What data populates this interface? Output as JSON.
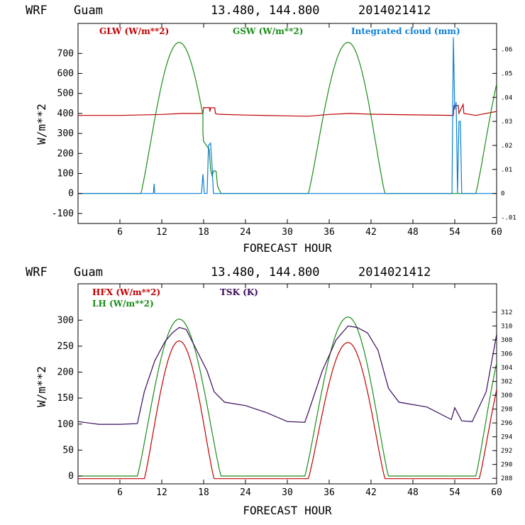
{
  "colors": {
    "red": "#c00000",
    "green": "#1a8c1a",
    "blue": "#0a7ed6",
    "purple": "#3a0a5a",
    "black": "#000000"
  },
  "chart_data": [
    {
      "type": "line",
      "header": {
        "model": "WRF",
        "location": "Guam",
        "coords": "13.480, 144.800",
        "run": "2014021412"
      },
      "xlabel": "FORECAST HOUR",
      "ylabel": "W/m**2",
      "xlim": [
        0,
        60
      ],
      "ylim": [
        -150,
        850
      ],
      "xticks": [
        "6",
        "12",
        "18",
        "24",
        "30",
        "36",
        "42",
        "48",
        "54",
        "60"
      ],
      "yticks": [
        "-100",
        "0",
        "100",
        "200",
        "300",
        "400",
        "500",
        "600",
        "700"
      ],
      "right_axis": {
        "lim": [
          -0.0125,
          0.0708
        ],
        "ticks": [
          ".06",
          ".05",
          ".04",
          ".03",
          ".02",
          ".01",
          "0",
          "-.01"
        ]
      },
      "series": [
        {
          "name": "GLW (W/m**2)",
          "color": "red",
          "axis": "left",
          "x": [
            0,
            6,
            12,
            15,
            17.9,
            18,
            18.2,
            18.8,
            18.9,
            19,
            19.6,
            19.7,
            20,
            24,
            30,
            33,
            36,
            39,
            42,
            48,
            53.8,
            53.9,
            54.5,
            54.6,
            55.2,
            55.3,
            57,
            60
          ],
          "y": [
            390,
            390,
            395,
            400,
            400,
            430,
            428,
            430,
            410,
            428,
            428,
            400,
            396,
            392,
            388,
            386,
            395,
            400,
            396,
            393,
            390,
            440,
            440,
            400,
            445,
            400,
            390,
            410
          ]
        },
        {
          "name": "GSW (W/m**2)",
          "color": "green",
          "axis": "left",
          "diurnal": [
            {
              "start": 9,
              "end": 20,
              "peak": 14.5,
              "amp": 755
            },
            {
              "start": 33,
              "end": 44,
              "peak": 38.7,
              "amp": 755
            },
            {
              "start": 57,
              "end": 68,
              "peak": 62.5,
              "amp": 755
            }
          ],
          "disturbance": {
            "x": [
              17.9,
              18,
              18.2,
              18.8,
              19,
              19.2,
              19.5,
              19.8,
              20,
              20.5
            ],
            "y": [
              305,
              260,
              250,
              220,
              120,
              90,
              115,
              110,
              35,
              0
            ]
          }
        },
        {
          "name": "Integrated cloud (mm)",
          "color": "blue",
          "axis": "right",
          "x": [
            0,
            10.8,
            10.9,
            11,
            17.7,
            17.9,
            18.1,
            18.5,
            18.7,
            19,
            19.2,
            19.4,
            53.6,
            53.8,
            54,
            54.2,
            54.4,
            54.6,
            54.8,
            55,
            55.2,
            60
          ],
          "y": [
            0,
            0,
            0.004,
            0,
            0,
            0.008,
            0,
            0,
            0.02,
            0.021,
            0.012,
            0,
            0,
            0.065,
            0.035,
            0.038,
            0,
            0.03,
            0.03,
            0,
            0,
            0
          ]
        }
      ]
    },
    {
      "type": "line",
      "header": {
        "model": "WRF",
        "location": "Guam",
        "coords": "13.480, 144.800",
        "run": "2014021412"
      },
      "xlabel": "FORECAST HOUR",
      "ylabel": "W/m**2",
      "xlim": [
        0,
        60
      ],
      "ylim": [
        -15,
        370
      ],
      "xticks": [
        "6",
        "12",
        "18",
        "24",
        "30",
        "36",
        "42",
        "48",
        "54",
        "60"
      ],
      "yticks": [
        "0",
        "50",
        "100",
        "150",
        "200",
        "250",
        "300"
      ],
      "right_axis": {
        "lim": [
          287.2,
          316.1
        ],
        "ticks": [
          "312",
          "310",
          "308",
          "306",
          "304",
          "302",
          "300",
          "298",
          "296",
          "294",
          "292",
          "290",
          "288"
        ]
      },
      "series": [
        {
          "name": "HFX (W/m**2)",
          "color": "red",
          "axis": "left",
          "diurnal": [
            {
              "start": 9.5,
              "end": 19.5,
              "peak": 14.5,
              "amp": 260,
              "base": -5
            },
            {
              "start": 33,
              "end": 44,
              "peak": 38.7,
              "amp": 257,
              "base": -5
            },
            {
              "start": 57.5,
              "end": 67,
              "peak": 62.5,
              "amp": 250,
              "base": -5
            }
          ],
          "base": -5
        },
        {
          "name": "LH  (W/m**2)",
          "color": "green",
          "axis": "left",
          "diurnal": [
            {
              "start": 8.5,
              "end": 20.5,
              "peak": 14.5,
              "amp": 302,
              "base": 0
            },
            {
              "start": 32.5,
              "end": 44.5,
              "peak": 38.7,
              "amp": 306,
              "base": 0
            },
            {
              "start": 57,
              "end": 68,
              "peak": 62.5,
              "amp": 300,
              "base": 0
            }
          ],
          "base": 0
        },
        {
          "name": "TSK (K)",
          "color": "purple",
          "axis": "right",
          "x": [
            0,
            3,
            6,
            8.5,
            9.5,
            11,
            12.5,
            13.5,
            14.5,
            15.5,
            16.5,
            17.5,
            18.5,
            19.5,
            21,
            24,
            27,
            30,
            32.5,
            33,
            35,
            37,
            38.7,
            40,
            41.5,
            43,
            44.5,
            46,
            50,
            53.5,
            54,
            55,
            56.5,
            58.5,
            60
          ],
          "y": [
            296.2,
            295.8,
            295.8,
            295.9,
            300.5,
            305,
            307.8,
            309,
            309.8,
            309.5,
            307.5,
            305.5,
            303.5,
            300.5,
            299,
            298.5,
            297.5,
            296.2,
            296.1,
            297.5,
            303.5,
            308,
            310,
            309.8,
            309,
            306.5,
            301,
            299,
            298.3,
            296.5,
            298.2,
            296.3,
            296.2,
            300.5,
            308.8
          ]
        }
      ]
    }
  ]
}
